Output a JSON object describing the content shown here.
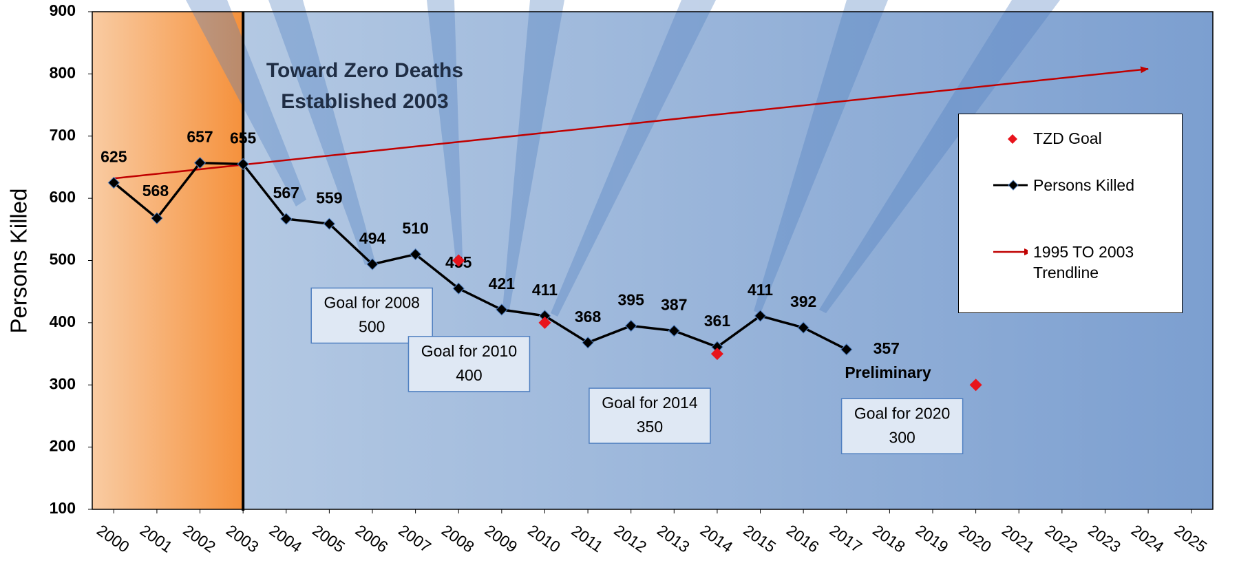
{
  "chart_data": {
    "type": "line",
    "ylabel": "Persons Killed",
    "xlim": [
      1999.5,
      2025.5
    ],
    "xticks": [
      2000,
      2001,
      2002,
      2003,
      2004,
      2005,
      2006,
      2007,
      2008,
      2009,
      2010,
      2011,
      2012,
      2013,
      2014,
      2015,
      2016,
      2017,
      2018,
      2019,
      2020,
      2021,
      2022,
      2023,
      2024,
      2025
    ],
    "ylim": [
      100,
      900
    ],
    "yticks": [
      100,
      200,
      300,
      400,
      500,
      600,
      700,
      800,
      900
    ],
    "legend": "upper right",
    "series": [
      {
        "name": "TZD Goal",
        "color": "#e8141c",
        "marker": "diamond",
        "x": [
          2008,
          2010,
          2014,
          2020
        ],
        "values": [
          500,
          400,
          350,
          300
        ]
      },
      {
        "name": "Persons Killed",
        "color": "#000000",
        "marker": "diamond",
        "x": [
          2000,
          2001,
          2002,
          2003,
          2004,
          2005,
          2006,
          2007,
          2008,
          2009,
          2010,
          2011,
          2012,
          2013,
          2014,
          2015,
          2016,
          2017
        ],
        "values": [
          625,
          568,
          657,
          655,
          567,
          559,
          494,
          510,
          455,
          421,
          411,
          368,
          395,
          387,
          361,
          411,
          392,
          357
        ]
      },
      {
        "name": "1995 TO 2003 Trendline",
        "color": "#c00000",
        "marker": "arrow",
        "x": [
          2000,
          2024
        ],
        "values": [
          632,
          808
        ]
      }
    ],
    "annotations": [
      "Toward Zero Deaths",
      "Established 2003",
      "Goal for 2008",
      "Goal for 2010",
      "Goal for 2014",
      "Goal for 2020",
      "Preliminary"
    ]
  }
}
